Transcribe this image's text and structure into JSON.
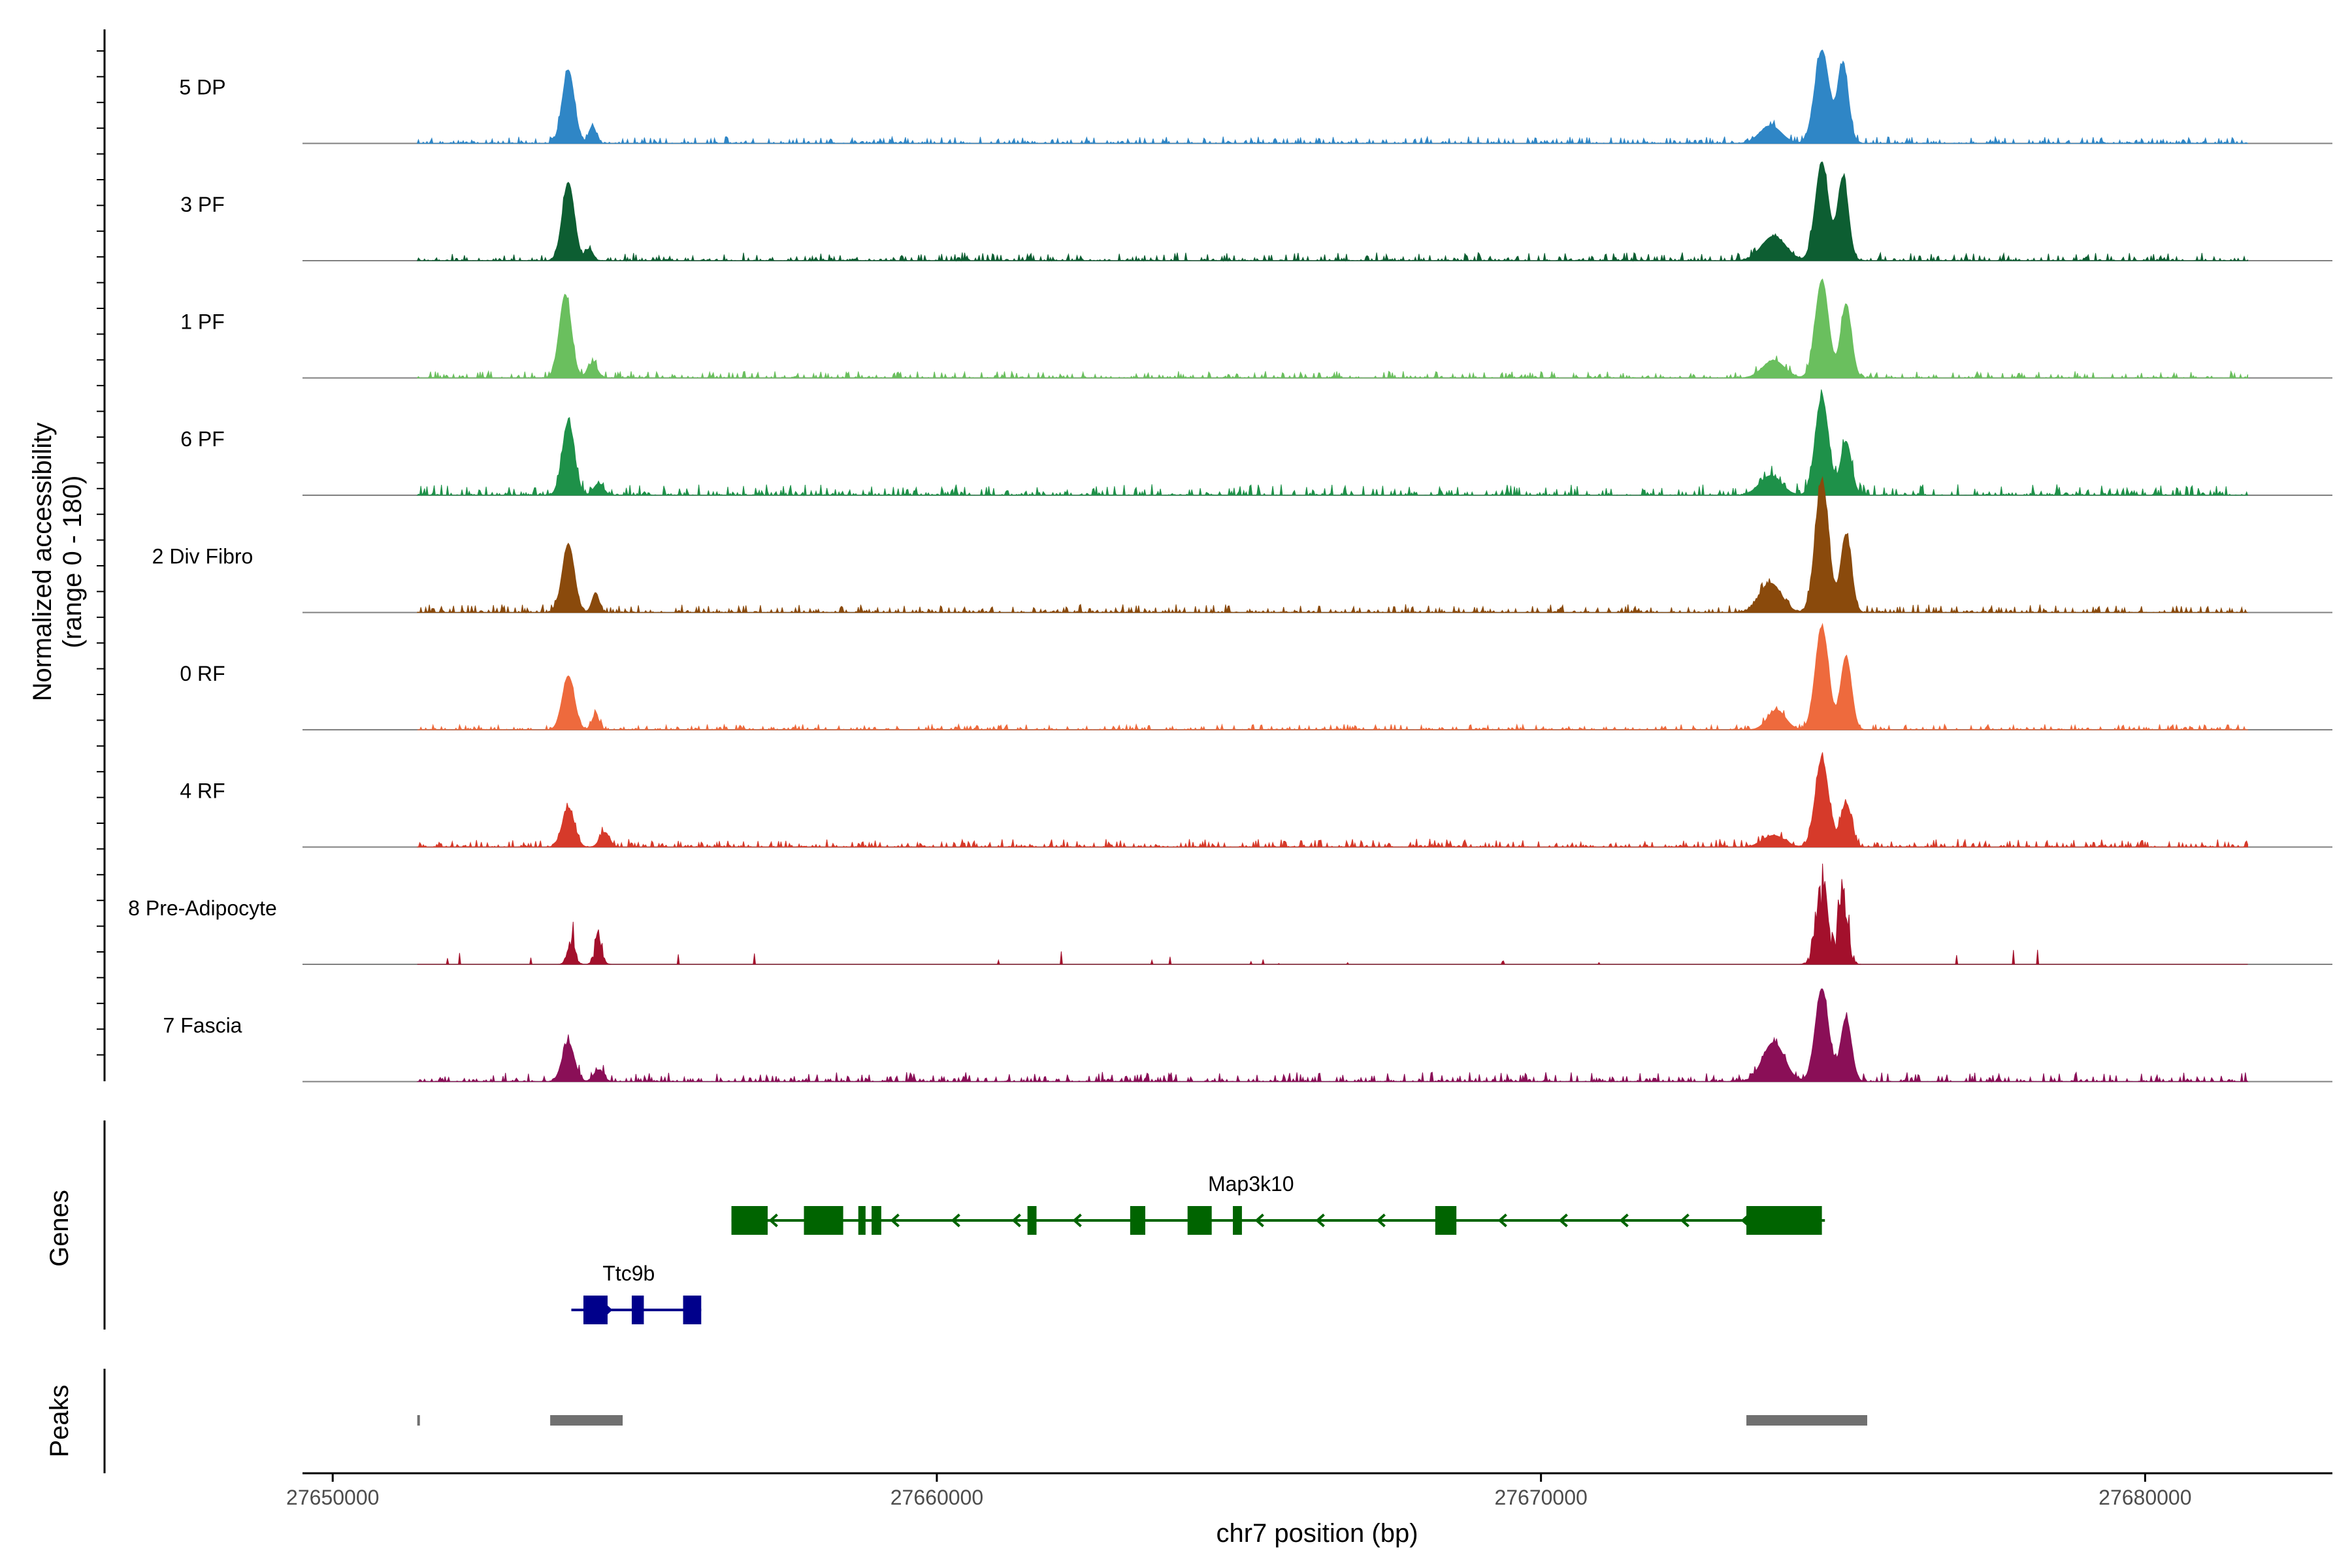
{
  "chart_data": {
    "type": "area",
    "chromosome": "chr7",
    "x_range": [
      27649500,
      27683100
    ],
    "x_ticks": [
      27650000,
      27660000,
      27670000,
      27680000
    ],
    "x_tick_labels": [
      "27650000",
      "27660000",
      "27670000",
      "27680000"
    ],
    "xlabel": "chr7 position (bp)",
    "ylabel_line1": "Normalized accessibility",
    "ylabel_line2": "(range 0 - 180)",
    "y_range": [
      0,
      180
    ],
    "genes_label": "Genes",
    "peaks_label": "Peaks",
    "tracks": [
      {
        "name": "5 DP",
        "color": "#2f86c6",
        "peaks": [
          [
            27653900,
            0.75,
            100
          ],
          [
            27654300,
            0.18,
            60
          ],
          [
            27673800,
            0.18,
            180
          ],
          [
            27674650,
            0.95,
            120
          ],
          [
            27675000,
            0.8,
            90
          ]
        ],
        "noise": 0.05
      },
      {
        "name": "3 PF",
        "color": "#0d5e32",
        "peaks": [
          [
            27653900,
            0.8,
            100
          ],
          [
            27654250,
            0.12,
            60
          ],
          [
            27673850,
            0.25,
            200
          ],
          [
            27674650,
            1.0,
            110
          ],
          [
            27675000,
            0.85,
            90
          ]
        ],
        "noise": 0.06
      },
      {
        "name": "1 PF",
        "color": "#6abf5e",
        "peaks": [
          [
            27653850,
            0.85,
            100
          ],
          [
            27654300,
            0.15,
            80
          ],
          [
            27673850,
            0.18,
            180
          ],
          [
            27674650,
            1.0,
            110
          ],
          [
            27675050,
            0.75,
            90
          ]
        ],
        "noise": 0.05
      },
      {
        "name": "6 PF",
        "color": "#1e9149",
        "peaks": [
          [
            27653900,
            0.75,
            100
          ],
          [
            27654400,
            0.12,
            80
          ],
          [
            27673800,
            0.2,
            180
          ],
          [
            27674650,
            1.0,
            110
          ],
          [
            27675050,
            0.55,
            90
          ]
        ],
        "noise": 0.08
      },
      {
        "name": "2 Div Fibro",
        "color": "#8a4a0c",
        "peaks": [
          [
            27653900,
            0.7,
            100
          ],
          [
            27654350,
            0.2,
            60
          ],
          [
            27673800,
            0.3,
            180
          ],
          [
            27674650,
            1.35,
            110
          ],
          [
            27675050,
            0.8,
            90
          ]
        ],
        "noise": 0.06
      },
      {
        "name": "0 RF",
        "color": "#ee6a3d",
        "peaks": [
          [
            27653900,
            0.55,
            100
          ],
          [
            27654350,
            0.15,
            60
          ],
          [
            27673900,
            0.2,
            150
          ],
          [
            27674650,
            1.05,
            110
          ],
          [
            27675050,
            0.75,
            90
          ]
        ],
        "noise": 0.04
      },
      {
        "name": "4 RF",
        "color": "#d63a2a",
        "peaks": [
          [
            27653900,
            0.4,
            100
          ],
          [
            27654500,
            0.15,
            80
          ],
          [
            27673850,
            0.12,
            180
          ],
          [
            27674650,
            0.9,
            110
          ],
          [
            27675050,
            0.45,
            90
          ]
        ],
        "noise": 0.06
      },
      {
        "name": "8 Pre-Adipocyte",
        "color": "#a3102c",
        "peaks": [
          [
            27653950,
            0.4,
            60
          ],
          [
            27654400,
            0.35,
            60
          ],
          [
            27674650,
            0.85,
            100
          ],
          [
            27675000,
            0.9,
            80
          ]
        ],
        "noise": 0.1,
        "spiky": true
      },
      {
        "name": "7 Fascia",
        "color": "#8a0f57",
        "peaks": [
          [
            27653900,
            0.4,
            100
          ],
          [
            27654400,
            0.12,
            80
          ],
          [
            27673850,
            0.4,
            180
          ],
          [
            27674650,
            0.95,
            110
          ],
          [
            27675050,
            0.65,
            90
          ]
        ],
        "noise": 0.07
      }
    ],
    "genes": [
      {
        "name": "Map3k10",
        "color": "#006400",
        "strand": "-",
        "start": 27656600,
        "end": 27674700,
        "exons": [
          [
            27656600,
            27657200
          ],
          [
            27657800,
            27658450
          ],
          [
            27658700,
            27658820
          ],
          [
            27658920,
            27659080
          ],
          [
            27661500,
            27661650
          ],
          [
            27663200,
            27663450
          ],
          [
            27664150,
            27664550
          ],
          [
            27664900,
            27665050
          ],
          [
            27668250,
            27668600
          ],
          [
            27673400,
            27674650
          ]
        ]
      },
      {
        "name": "Ttc9b",
        "color": "#00008b",
        "strand": "+",
        "start": 27653950,
        "end": 27656100,
        "exons": [
          [
            27654150,
            27654550
          ],
          [
            27654950,
            27655150
          ],
          [
            27655800,
            27656100
          ]
        ]
      }
    ],
    "peak_regions": [
      [
        27651400,
        27651430
      ],
      [
        27653600,
        27654800
      ],
      [
        27673400,
        27675400
      ]
    ]
  }
}
